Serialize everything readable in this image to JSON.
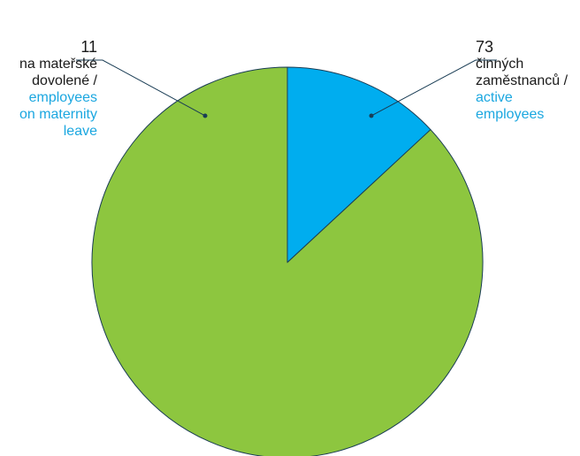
{
  "colors": {
    "active": "#8dc63f",
    "maternity": "#00adef",
    "outline": "#1a3d55",
    "leader": "#1a3d55"
  },
  "chart_data": {
    "type": "pie",
    "title": "",
    "start": "12 o'clock",
    "direction": "clockwise",
    "slices": [
      {
        "value": 11,
        "label_cz": "na mateřské\ndovolené /",
        "label_en": "employees\non maternity\nleave",
        "color": "#00adef"
      },
      {
        "value": 73,
        "label_cz": "činných\nzaměstnanců /",
        "label_en": "active\nemployees",
        "color": "#8dc63f"
      }
    ]
  }
}
